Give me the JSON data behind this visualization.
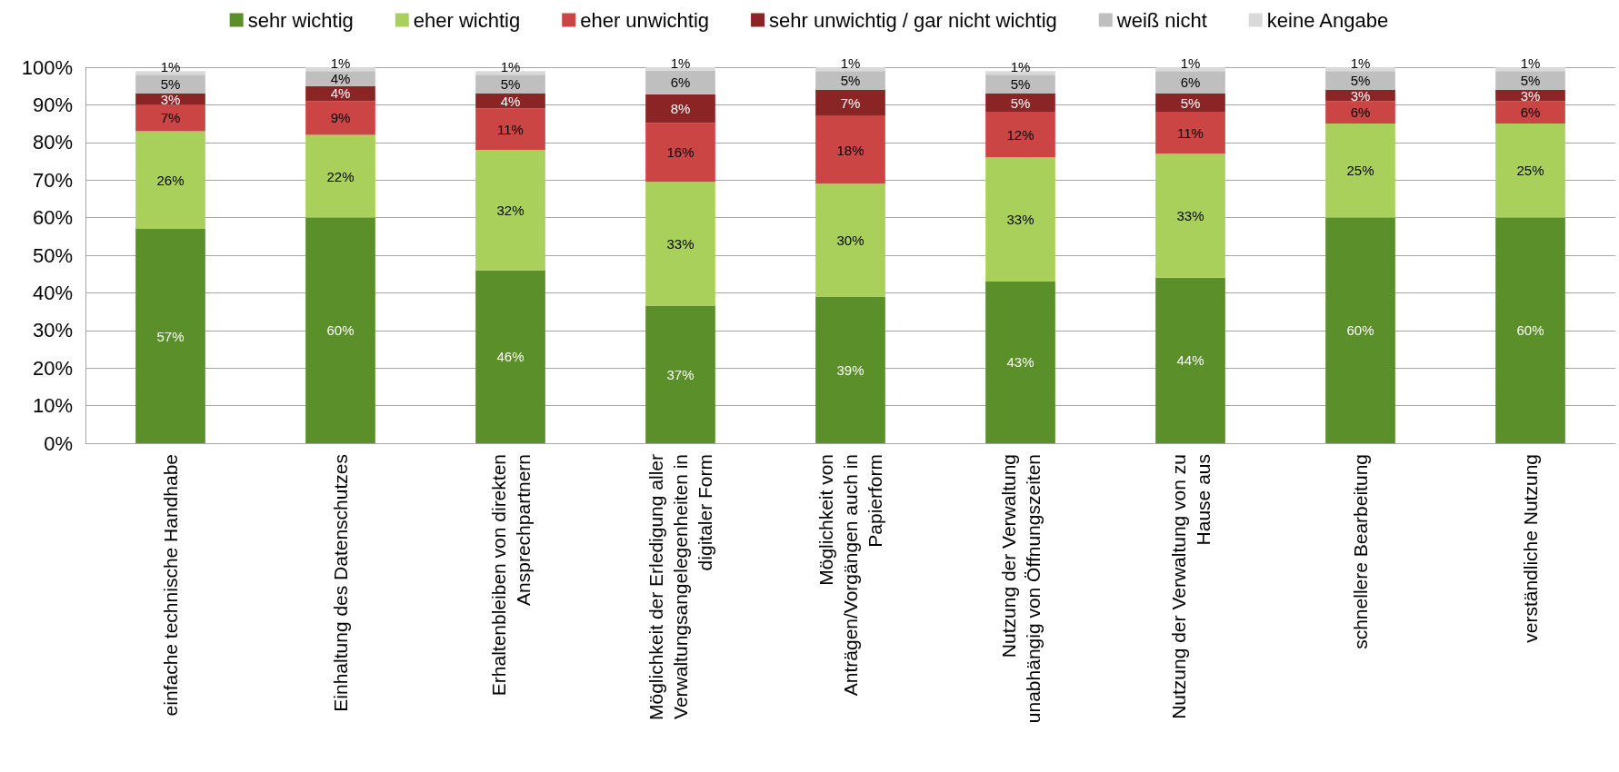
{
  "chart_data": {
    "type": "bar",
    "stacked": true,
    "categories": [
      "einfache technische Handhabe",
      "Einhaltung des Datenschutzes",
      "Erhaltenbleiben von direkten Ansprechpartnern",
      "Möglichkeit der Erledigung aller Verwaltungsangelegenheiten in digitaler Form",
      "Möglichkeit von Anträgen/Vorgängen auch in Papierform",
      "Nutzung der Verwaltung unabhängig von Öffnungszeiten",
      "Nutzung der Verwaltung von zu Hause aus",
      "schnellere Bearbeitung",
      "verständliche Nutzung"
    ],
    "series": [
      {
        "name": "sehr wichtig",
        "color": "#5a8f29",
        "values": [
          57,
          60,
          46,
          36.6,
          39,
          43,
          44,
          60,
          60
        ],
        "value_labels": [
          "57%",
          "60%",
          "46%",
          "37%",
          "39%",
          "43%",
          "44%",
          "60%",
          "60%"
        ]
      },
      {
        "name": "eher wichtig",
        "color": "#a9d05a",
        "values": [
          26,
          22,
          32,
          32.9,
          30,
          33,
          33,
          25,
          25
        ],
        "value_labels": [
          "26%",
          "22%",
          "32%",
          "33%",
          "30%",
          "33%",
          "33%",
          "25%",
          "25%"
        ]
      },
      {
        "name": "eher unwichtig",
        "color": "#cc4545",
        "values": [
          7,
          9,
          11,
          15.7,
          18,
          12,
          11,
          6,
          6
        ],
        "value_labels": [
          "7%",
          "9%",
          "11%",
          "16%",
          "18%",
          "12%",
          "11%",
          "6%",
          "6%"
        ]
      },
      {
        "name": "sehr unwichtig / gar nicht wichtig",
        "color": "#8b2525",
        "values": [
          3,
          4,
          4,
          7.6,
          7,
          5,
          5,
          3,
          3
        ],
        "value_labels": [
          "3%",
          "4%",
          "4%",
          "8%",
          "7%",
          "5%",
          "5%",
          "3%",
          "3%"
        ]
      },
      {
        "name": "weiß nicht",
        "color": "#bfbfbf",
        "values": [
          5,
          4,
          5,
          6.3,
          5,
          5,
          6,
          5,
          5
        ],
        "value_labels": [
          "5%",
          "4%",
          "5%",
          "6%",
          "5%",
          "5%",
          "6%",
          "5%",
          "5%"
        ]
      },
      {
        "name": "keine Angabe",
        "color": "#d9d9d9",
        "values": [
          1,
          1,
          1,
          0.9,
          1,
          1,
          1,
          1,
          1
        ],
        "value_labels": [
          "1%",
          "1%",
          "1%",
          "1%",
          "1%",
          "1%",
          "1%",
          "1%",
          "1%"
        ]
      }
    ],
    "ylim": [
      0,
      100
    ],
    "yticks": [
      {
        "value": 0,
        "label": "0%"
      },
      {
        "value": 10,
        "label": "10%"
      },
      {
        "value": 20,
        "label": "20%"
      },
      {
        "value": 30,
        "label": "30%"
      },
      {
        "value": 40,
        "label": "40%"
      },
      {
        "value": 50,
        "label": "50%"
      },
      {
        "value": 60,
        "label": "60%"
      },
      {
        "value": 70,
        "label": "70%"
      },
      {
        "value": 80,
        "label": "80%"
      },
      {
        "value": 90,
        "label": "90%"
      },
      {
        "value": 100,
        "label": "100%"
      }
    ],
    "grid": "y",
    "legend": "top"
  }
}
